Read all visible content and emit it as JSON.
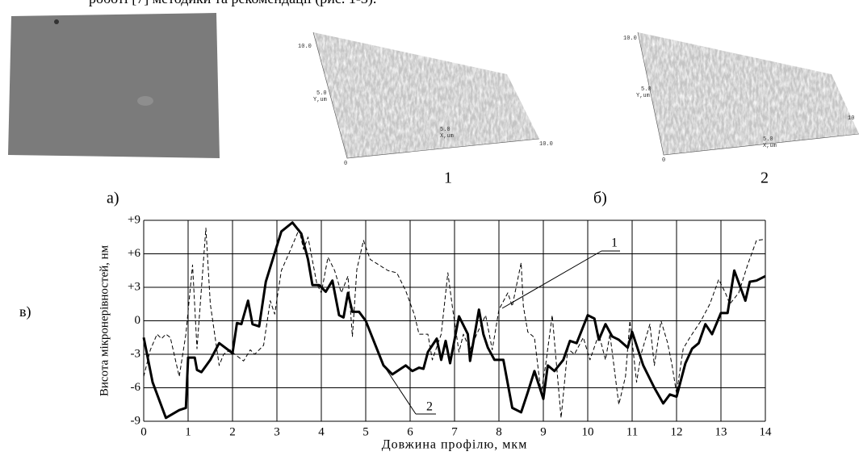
{
  "header_text": "роботі [7] методики та рекомендації (рис. 1-3).",
  "panel_labels": {
    "a": "а)",
    "b": "б)",
    "c": "в)"
  },
  "surface_plots": [
    {
      "label": "1",
      "y_max": "10.0",
      "y_mid": "5.0",
      "y_unit": "Y,um",
      "origin": "0",
      "x_mid": "5.0",
      "x_unit": "X,um",
      "x_max": "10.0"
    },
    {
      "label": "2",
      "y_max": "10.0",
      "y_mid": "5.0",
      "y_unit": "Y,um",
      "origin": "0",
      "x_mid": "5.0",
      "x_unit": "X,um",
      "x_max": "10"
    }
  ],
  "chart_data": {
    "type": "line",
    "xlabel": "Довжина профілю, мкм",
    "ylabel": "Висота мікронерівностей, нм",
    "xlim": [
      0,
      14
    ],
    "ylim": [
      -9,
      9
    ],
    "grid": true,
    "xticks": [
      0,
      1,
      2,
      3,
      4,
      5,
      6,
      7,
      8,
      9,
      10,
      11,
      12,
      13,
      14
    ],
    "yticks": [
      {
        "value": 9,
        "label": "+9"
      },
      {
        "value": 6,
        "label": "+6"
      },
      {
        "value": 3,
        "label": "+3"
      },
      0,
      -3,
      -6,
      -9
    ],
    "series": [
      {
        "name": "1",
        "color": "#000000",
        "style": "dashed",
        "x": [
          0,
          0.15,
          0.3,
          0.4,
          0.5,
          0.6,
          0.8,
          0.95,
          1.1,
          1.2,
          1.4,
          1.5,
          1.7,
          1.8,
          1.95,
          2.05,
          2.25,
          2.4,
          2.5,
          2.7,
          2.85,
          2.95,
          3.1,
          3.3,
          3.5,
          3.6,
          3.7,
          3.9,
          4.0,
          4.15,
          4.3,
          4.45,
          4.6,
          4.7,
          4.8,
          4.95,
          5.1,
          5.3,
          5.5,
          5.7,
          5.9,
          6.1,
          6.2,
          6.4,
          6.5,
          6.7,
          6.85,
          6.95,
          7.1,
          7.2,
          7.35,
          7.5,
          7.7,
          7.85,
          8.0,
          8.2,
          8.3,
          8.5,
          8.55,
          8.65,
          8.8,
          8.95,
          9.05,
          9.2,
          9.4,
          9.55,
          9.7,
          9.9,
          10.05,
          10.25,
          10.4,
          10.5,
          10.7,
          10.85,
          10.95,
          11.1,
          11.2,
          11.4,
          11.5,
          11.65,
          11.8,
          11.9,
          12.0,
          12.15,
          12.3,
          12.55,
          12.75,
          12.95,
          13.1,
          13.2,
          13.4,
          13.6,
          13.8,
          14
        ],
        "values": [
          -5,
          -2.6,
          -1.2,
          -1.6,
          -1.2,
          -1.5,
          -5,
          -1.2,
          5,
          -2.5,
          8.3,
          1.5,
          -4,
          -3,
          -2.6,
          -3,
          -3.6,
          -2.6,
          -3,
          -2.2,
          1.8,
          0.6,
          4.5,
          6.3,
          8.2,
          6.4,
          7.5,
          3.3,
          2.5,
          5.7,
          4.5,
          2.5,
          4,
          -1.4,
          4.6,
          7.2,
          5.5,
          5,
          4.5,
          4.3,
          2.7,
          0.5,
          -1.2,
          -1.2,
          -3.5,
          -1.2,
          4.3,
          1.3,
          -2.8,
          -1.2,
          -2.6,
          -1.2,
          0.5,
          -2.6,
          1,
          2.5,
          1.3,
          5.2,
          1.3,
          -1,
          -1.5,
          -6.5,
          -4,
          0.5,
          -8.7,
          -2.5,
          -3,
          -1.5,
          -3.5,
          -1.2,
          -3.5,
          -1.2,
          -7.5,
          -5,
          0,
          -5.5,
          -3,
          -0.3,
          -4,
          0,
          -2,
          -4,
          -6.5,
          -2.5,
          -1.5,
          0,
          1.5,
          3.7,
          2.5,
          1.5,
          2.5,
          5,
          7.2,
          7.3
        ]
      },
      {
        "name": "2",
        "color": "#000000",
        "style": "solid",
        "x": [
          0,
          0.2,
          0.5,
          0.8,
          0.95,
          1.0,
          1.15,
          1.2,
          1.3,
          1.5,
          1.7,
          2.0,
          2.1,
          2.2,
          2.35,
          2.45,
          2.6,
          2.75,
          3.1,
          3.35,
          3.55,
          3.7,
          3.8,
          3.95,
          4.1,
          4.25,
          4.4,
          4.5,
          4.6,
          4.7,
          4.85,
          5.0,
          5.2,
          5.4,
          5.6,
          5.9,
          6.05,
          6.2,
          6.3,
          6.4,
          6.6,
          6.7,
          6.8,
          6.9,
          7.1,
          7.3,
          7.35,
          7.55,
          7.65,
          7.75,
          7.9,
          8.1,
          8.3,
          8.5,
          8.65,
          8.8,
          9.0,
          9.1,
          9.25,
          9.45,
          9.6,
          9.75,
          9.9,
          10.0,
          10.15,
          10.25,
          10.4,
          10.55,
          10.7,
          10.9,
          11.0,
          11.25,
          11.5,
          11.7,
          11.85,
          12.0,
          12.2,
          12.35,
          12.5,
          12.65,
          12.8,
          13.0,
          13.15,
          13.3,
          13.55,
          13.65,
          13.8,
          14
        ],
        "values": [
          -1.5,
          -5.5,
          -8.7,
          -8,
          -7.8,
          -3.3,
          -3.3,
          -4.4,
          -4.6,
          -3.5,
          -2,
          -2.9,
          -0.2,
          -0.3,
          1.8,
          -0.3,
          -0.5,
          3.5,
          8,
          8.8,
          7.8,
          5.5,
          3.2,
          3.2,
          2.6,
          3.6,
          0.5,
          0.3,
          2.5,
          0.8,
          0.8,
          0,
          -2,
          -4,
          -4.8,
          -4,
          -4.5,
          -4.2,
          -4.3,
          -2.8,
          -1.6,
          -3.5,
          -1.8,
          -3.8,
          0.4,
          -1.2,
          -3.6,
          1.0,
          -1.2,
          -2.4,
          -3.5,
          -3.5,
          -7.8,
          -8.2,
          -6.4,
          -4.5,
          -7,
          -4,
          -4.5,
          -3.5,
          -1.8,
          -2,
          -0.5,
          0.5,
          0.2,
          -1.7,
          -0.3,
          -1.4,
          -1.7,
          -2.4,
          -1,
          -4,
          -6,
          -7.4,
          -6.6,
          -6.8,
          -3.8,
          -2.5,
          -2,
          -0.3,
          -1.2,
          0.7,
          0.7,
          4.5,
          1.8,
          3.5,
          3.6,
          4
        ]
      }
    ]
  }
}
